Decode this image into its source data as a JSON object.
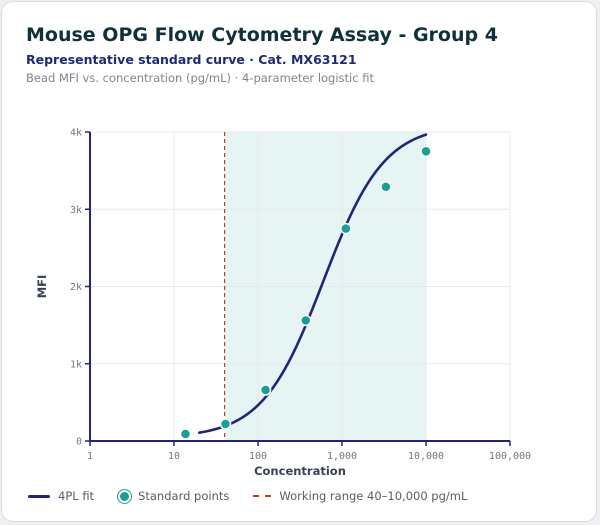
{
  "header": {
    "title": "Mouse OPG Flow Cytometry Assay - Group 4",
    "subtitle": "Representative standard curve · Cat. MX63121",
    "description": "Bead MFI vs. concentration (pg/mL) · 4-parameter logistic fit"
  },
  "legend": {
    "fit_label": "4PL fit",
    "points_label": "Standard points",
    "range_label": "Working range 40–10,000 pg/mL"
  },
  "colors": {
    "fit": "#23237a",
    "points": "#17a096",
    "range_line": "#c0392b",
    "range_fill": "#e6f5f4"
  },
  "chart_data": {
    "type": "scatter",
    "x_scale": "log",
    "xlabel": "Concentration",
    "ylabel": "MFI",
    "xlim": [
      1,
      100000
    ],
    "ylim": [
      0,
      4000
    ],
    "x_ticks": [
      1,
      10,
      100,
      1000,
      10000,
      100000
    ],
    "x_tick_labels": [
      "1",
      "10",
      "100",
      "1,000",
      "10,000",
      "100,000"
    ],
    "y_ticks": [
      0,
      1000,
      2000,
      3000,
      4000
    ],
    "y_tick_labels": [
      "0",
      "1k",
      "2k",
      "3k",
      "4k"
    ],
    "grid": true,
    "working_range": [
      40,
      10000
    ],
    "series": [
      {
        "name": "Standard points",
        "kind": "points",
        "x": [
          13.7,
          41,
          123,
          370,
          1111,
          3333,
          10000
        ],
        "y": [
          90,
          220,
          660,
          1560,
          2750,
          3290,
          3750
        ]
      },
      {
        "name": "4PL fit",
        "kind": "curve",
        "x_range": [
          20,
          10000
        ],
        "params": {
          "A": 40,
          "B": 1.2,
          "C": 600,
          "D": 4100
        }
      }
    ]
  }
}
